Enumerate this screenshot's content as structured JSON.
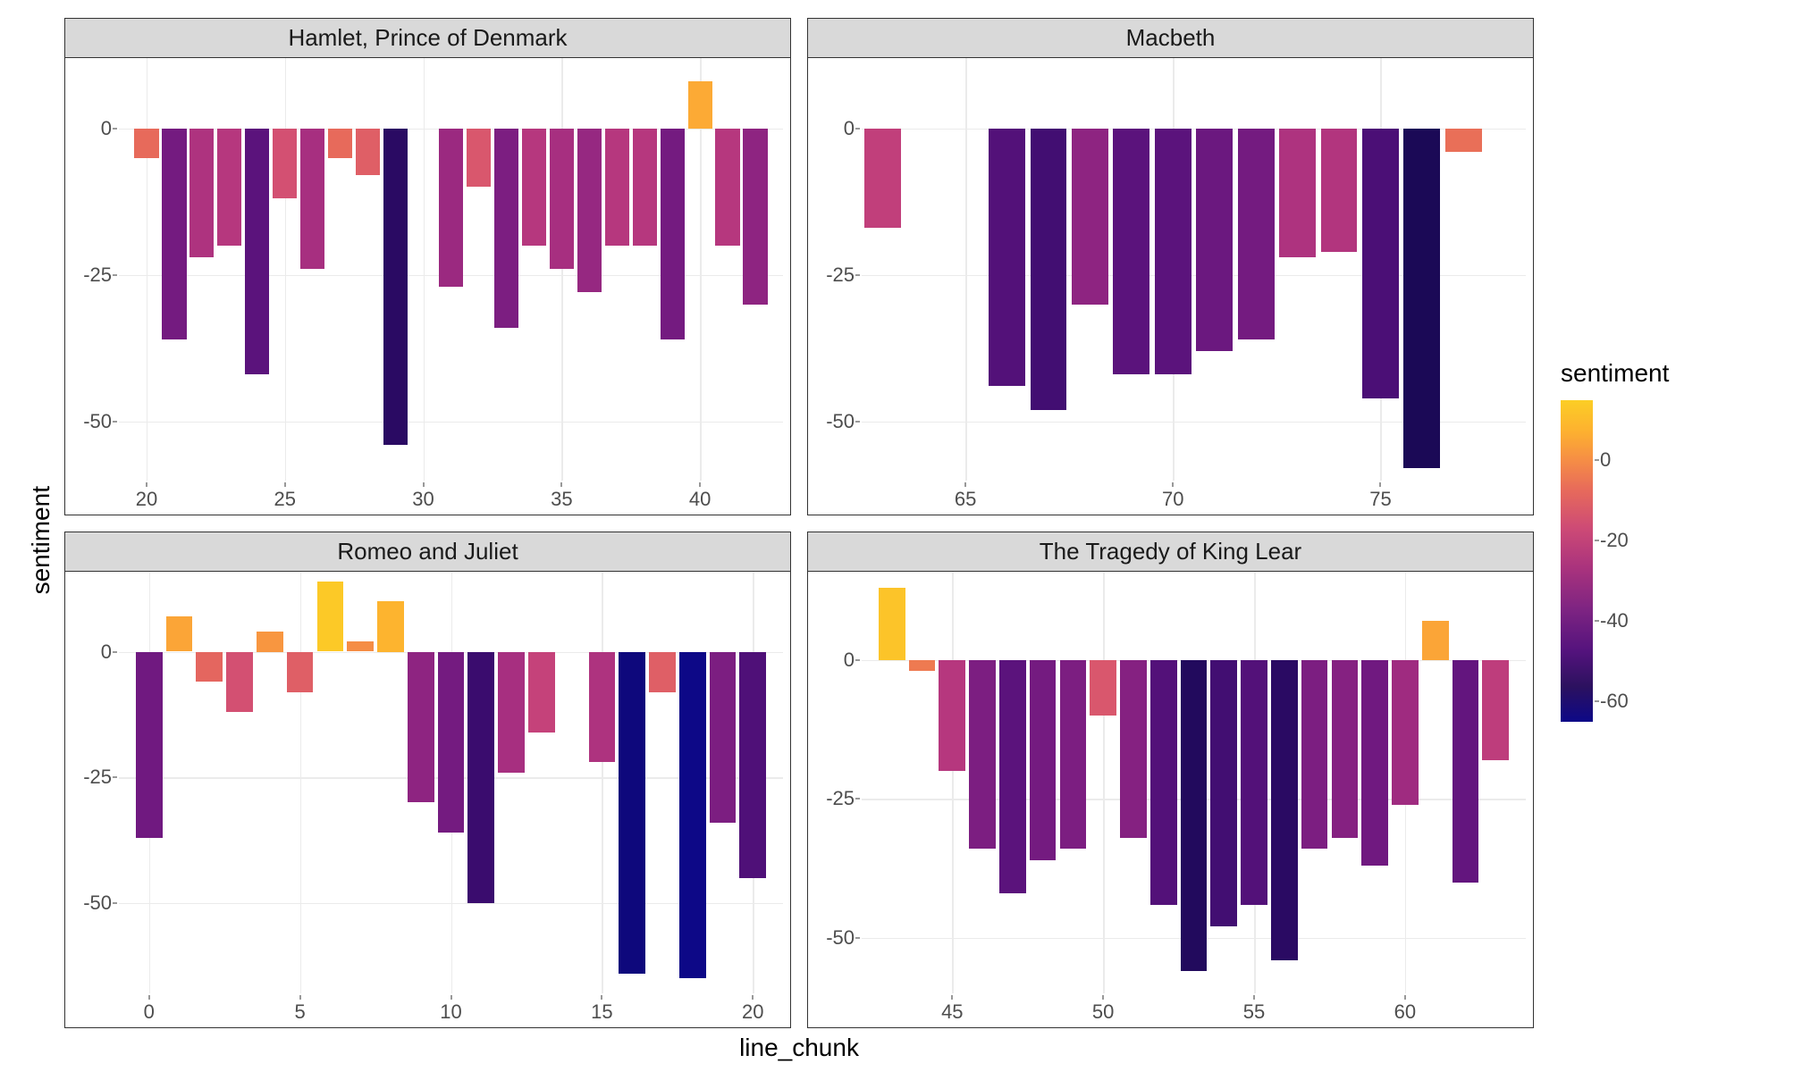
{
  "axis_labels": {
    "x": "line_chunk",
    "y": "sentiment"
  },
  "legend": {
    "title": "sentiment",
    "min": -65,
    "max": 15,
    "ticks": [
      0,
      -20,
      -40,
      -60
    ],
    "gradient_stops": [
      {
        "t": 0.0,
        "c": "#fcce25"
      },
      {
        "t": 0.1,
        "c": "#fdb030"
      },
      {
        "t": 0.19,
        "c": "#f58c46"
      },
      {
        "t": 0.28,
        "c": "#e76a5b"
      },
      {
        "t": 0.4,
        "c": "#cd4a76"
      },
      {
        "t": 0.52,
        "c": "#aa337d"
      },
      {
        "t": 0.65,
        "c": "#7e2482"
      },
      {
        "t": 0.78,
        "c": "#54137d"
      },
      {
        "t": 0.89,
        "c": "#2c115f"
      },
      {
        "t": 1.0,
        "c": "#0d0887"
      }
    ]
  },
  "color_scale": {
    "domain_min": -65,
    "domain_max": 15,
    "stops": [
      {
        "v": 15,
        "c": "#fcce25"
      },
      {
        "v": 10,
        "c": "#fdb42f"
      },
      {
        "v": 5,
        "c": "#fa9b3d"
      },
      {
        "v": 0,
        "c": "#f2844b"
      },
      {
        "v": -5,
        "c": "#e76a5b"
      },
      {
        "v": -10,
        "c": "#d9576d"
      },
      {
        "v": -15,
        "c": "#c94579"
      },
      {
        "v": -20,
        "c": "#b6377e"
      },
      {
        "v": -25,
        "c": "#a32d80"
      },
      {
        "v": -30,
        "c": "#8e2481"
      },
      {
        "v": -35,
        "c": "#781c81"
      },
      {
        "v": -40,
        "c": "#63157e"
      },
      {
        "v": -45,
        "c": "#4f1078"
      },
      {
        "v": -50,
        "c": "#3a0c6e"
      },
      {
        "v": -55,
        "c": "#260a60"
      },
      {
        "v": -60,
        "c": "#14094f"
      },
      {
        "v": -65,
        "c": "#0d0887"
      }
    ]
  },
  "panel_style": {
    "background": "#ffffff",
    "grid_color": "#ebebeb",
    "bar_rel_width": 0.88
  },
  "panels": [
    {
      "title": "Hamlet, Prince of Denmark",
      "x_range": [
        19,
        43
      ],
      "y_range": [
        -60,
        12
      ],
      "x_ticks": [
        20,
        25,
        30,
        35,
        40
      ],
      "y_ticks": [
        0,
        -25,
        -50
      ],
      "bars": [
        {
          "x": 20,
          "y": -5
        },
        {
          "x": 21,
          "y": -36
        },
        {
          "x": 22,
          "y": -22
        },
        {
          "x": 23,
          "y": -20
        },
        {
          "x": 24,
          "y": -42
        },
        {
          "x": 25,
          "y": -12
        },
        {
          "x": 26,
          "y": -24
        },
        {
          "x": 27,
          "y": -5
        },
        {
          "x": 28,
          "y": -8
        },
        {
          "x": 29,
          "y": -54
        },
        {
          "x": 31,
          "y": -27
        },
        {
          "x": 32,
          "y": -10
        },
        {
          "x": 33,
          "y": -34
        },
        {
          "x": 34,
          "y": -20
        },
        {
          "x": 35,
          "y": -24
        },
        {
          "x": 36,
          "y": -28
        },
        {
          "x": 37,
          "y": -20
        },
        {
          "x": 38,
          "y": -20
        },
        {
          "x": 39,
          "y": -36
        },
        {
          "x": 40,
          "y": 8
        },
        {
          "x": 41,
          "y": -20
        },
        {
          "x": 42,
          "y": -30
        }
      ]
    },
    {
      "title": "Macbeth",
      "x_range": [
        62.5,
        78.5
      ],
      "y_range": [
        -60,
        12
      ],
      "x_ticks": [
        65,
        70,
        75
      ],
      "y_ticks": [
        0,
        -25,
        -50
      ],
      "bars": [
        {
          "x": 63,
          "y": -17
        },
        {
          "x": 66,
          "y": -44
        },
        {
          "x": 67,
          "y": -48
        },
        {
          "x": 68,
          "y": -30
        },
        {
          "x": 69,
          "y": -42
        },
        {
          "x": 70,
          "y": -42
        },
        {
          "x": 71,
          "y": -38
        },
        {
          "x": 72,
          "y": -36
        },
        {
          "x": 73,
          "y": -22
        },
        {
          "x": 74,
          "y": -21
        },
        {
          "x": 75,
          "y": -46
        },
        {
          "x": 76,
          "y": -58
        },
        {
          "x": 77,
          "y": -4
        }
      ]
    },
    {
      "title": "Romeo and Juliet",
      "x_range": [
        -1,
        21
      ],
      "y_range": [
        -68,
        16
      ],
      "x_ticks": [
        0,
        5,
        10,
        15,
        20
      ],
      "y_ticks": [
        0,
        -25,
        -50
      ],
      "bars": [
        {
          "x": 0,
          "y": -37
        },
        {
          "x": 1,
          "y": 7
        },
        {
          "x": 2,
          "y": -6
        },
        {
          "x": 3,
          "y": -12
        },
        {
          "x": 4,
          "y": 4
        },
        {
          "x": 5,
          "y": -8
        },
        {
          "x": 6,
          "y": 14
        },
        {
          "x": 7,
          "y": 2
        },
        {
          "x": 8,
          "y": 10
        },
        {
          "x": 9,
          "y": -30
        },
        {
          "x": 10,
          "y": -36
        },
        {
          "x": 11,
          "y": -50
        },
        {
          "x": 12,
          "y": -24
        },
        {
          "x": 13,
          "y": -16
        },
        {
          "x": 15,
          "y": -22
        },
        {
          "x": 16,
          "y": -64
        },
        {
          "x": 17,
          "y": -8
        },
        {
          "x": 18,
          "y": -65
        },
        {
          "x": 19,
          "y": -34
        },
        {
          "x": 20,
          "y": -45
        }
      ]
    },
    {
      "title": "The Tragedy of King Lear",
      "x_range": [
        42,
        64
      ],
      "y_range": [
        -60,
        16
      ],
      "x_ticks": [
        45,
        50,
        55,
        60
      ],
      "y_ticks": [
        0,
        -25,
        -50
      ],
      "bars": [
        {
          "x": 43,
          "y": 13
        },
        {
          "x": 44,
          "y": -2
        },
        {
          "x": 45,
          "y": -20
        },
        {
          "x": 46,
          "y": -34
        },
        {
          "x": 47,
          "y": -42
        },
        {
          "x": 48,
          "y": -36
        },
        {
          "x": 49,
          "y": -34
        },
        {
          "x": 50,
          "y": -10
        },
        {
          "x": 51,
          "y": -32
        },
        {
          "x": 52,
          "y": -44
        },
        {
          "x": 53,
          "y": -56
        },
        {
          "x": 54,
          "y": -48
        },
        {
          "x": 55,
          "y": -44
        },
        {
          "x": 56,
          "y": -54
        },
        {
          "x": 57,
          "y": -34
        },
        {
          "x": 58,
          "y": -32
        },
        {
          "x": 59,
          "y": -37
        },
        {
          "x": 60,
          "y": -26
        },
        {
          "x": 61,
          "y": 7
        },
        {
          "x": 62,
          "y": -40
        },
        {
          "x": 63,
          "y": -18
        }
      ]
    }
  ]
}
